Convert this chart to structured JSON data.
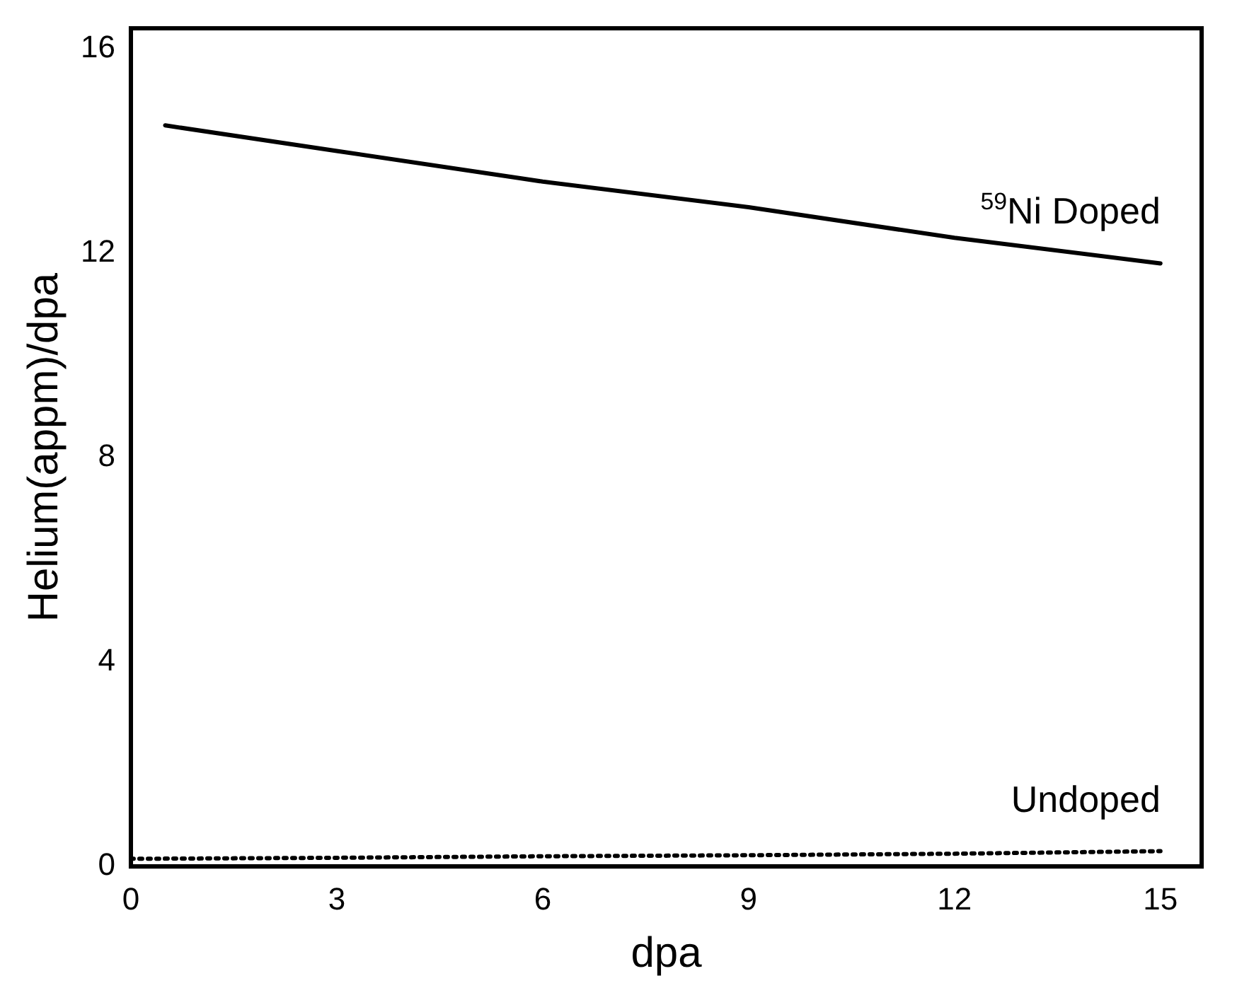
{
  "chart_data": {
    "type": "line",
    "xlabel": "dpa",
    "ylabel": "Helium(appm)/dpa",
    "xlim": [
      0,
      15.6
    ],
    "ylim": [
      0,
      16.4
    ],
    "xticks": [
      0,
      3,
      6,
      9,
      12,
      15
    ],
    "yticks": [
      0,
      4,
      8,
      12,
      16
    ],
    "grid": false,
    "legend": false,
    "marker": "none",
    "series": [
      {
        "name": "$^{59}$Ni Doped",
        "color": "#000000",
        "line_style": "solid",
        "x": [
          0.5,
          3,
          6,
          9,
          12,
          15
        ],
        "values": [
          14.5,
          14.0,
          13.4,
          12.9,
          12.3,
          11.8
        ]
      },
      {
        "name": "Undoped",
        "color": "#000000",
        "line_style": "dotted",
        "x": [
          0,
          3,
          6,
          9,
          12,
          15
        ],
        "values": [
          0.15,
          0.17,
          0.2,
          0.22,
          0.25,
          0.3
        ]
      }
    ]
  }
}
